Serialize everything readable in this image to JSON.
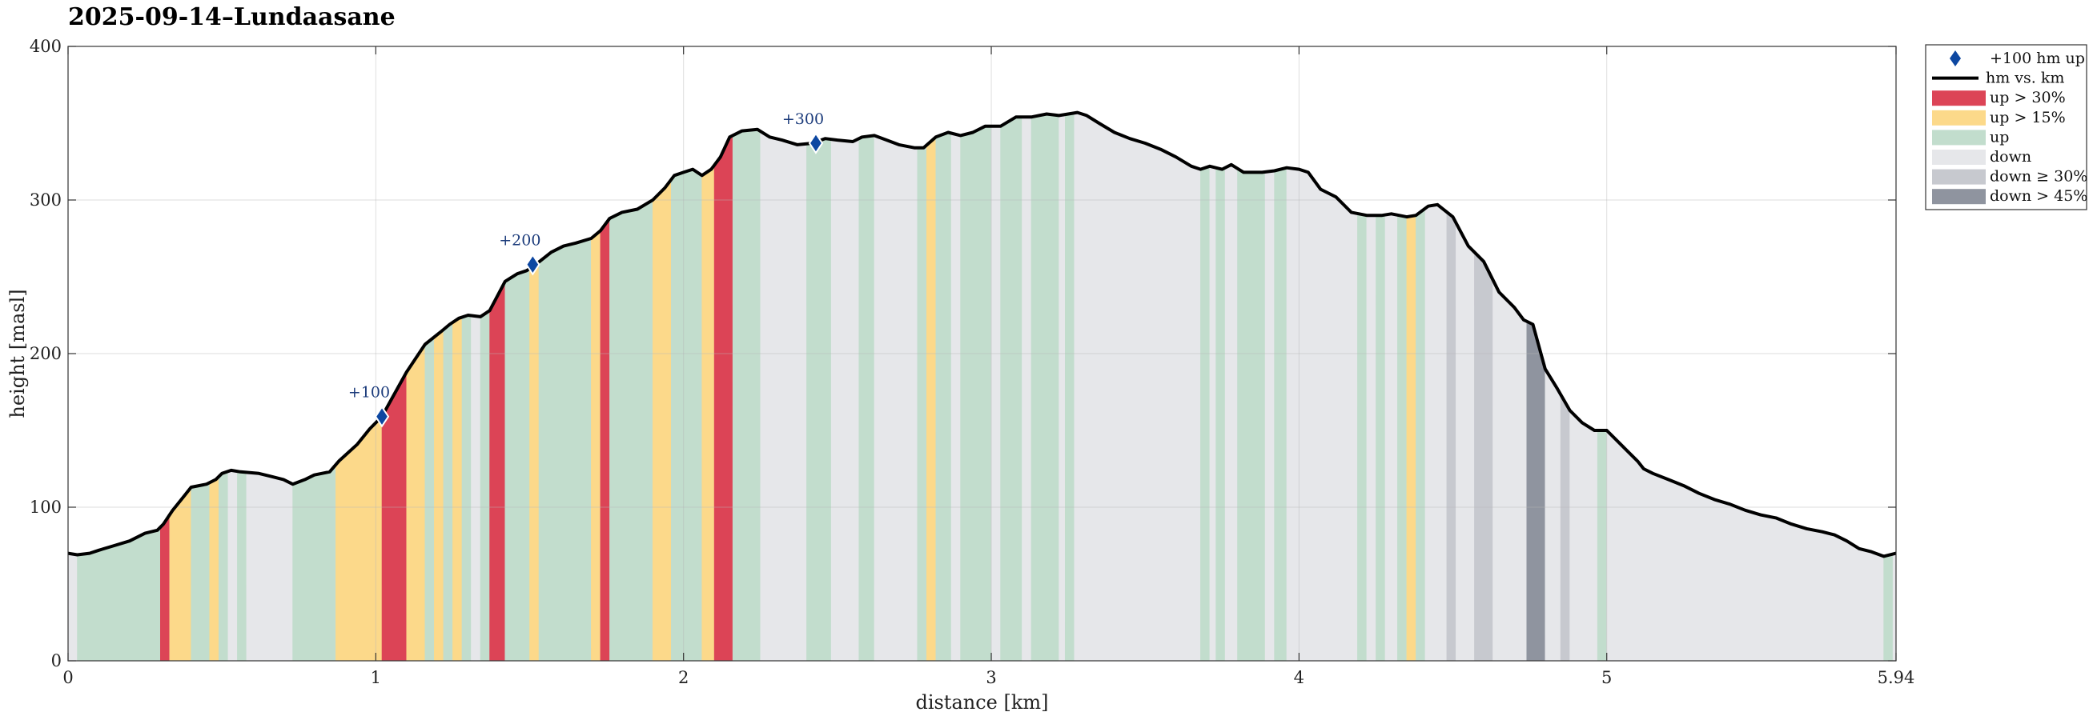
{
  "chart_data": {
    "type": "area",
    "title": "2025-09-14–Lundaasane",
    "xlabel": "distance [km]",
    "ylabel": "height [masl]",
    "xlim": [
      0,
      5.94
    ],
    "ylim": [
      0,
      400
    ],
    "xticks": [
      "0",
      "1",
      "2",
      "3",
      "4",
      "5",
      "5.94"
    ],
    "xtick_values": [
      0,
      1,
      2,
      3,
      4,
      5,
      5.94
    ],
    "yticks": [
      "0",
      "100",
      "200",
      "300",
      "400"
    ],
    "ytick_values": [
      0,
      100,
      200,
      300,
      400
    ],
    "grid": true,
    "legend_placement": "outside-top-right",
    "legend": [
      {
        "label": "+100 hm up",
        "kind": "marker",
        "color": "#0d47a1"
      },
      {
        "label": "hm vs. km",
        "kind": "line",
        "color": "#000000"
      },
      {
        "label": "up > 30%",
        "kind": "patch",
        "color": "#dc4456"
      },
      {
        "label": "up > 15%",
        "kind": "patch",
        "color": "#fcd98a"
      },
      {
        "label": "up",
        "kind": "patch",
        "color": "#c2ddcd"
      },
      {
        "label": "down",
        "kind": "patch",
        "color": "#e6e7ea"
      },
      {
        "label": "down ≥ 30%",
        "kind": "patch",
        "color": "#c7c9cf"
      },
      {
        "label": "down > 45%",
        "kind": "patch",
        "color": "#8f949f"
      }
    ],
    "colors": {
      "up30": "#dc4456",
      "up15": "#fcd98a",
      "up": "#c2ddcd",
      "down": "#e6e7ea",
      "down30": "#c7c9cf",
      "down45": "#8f949f",
      "line": "#000000",
      "marker": "#0d47a1"
    },
    "profile": [
      [
        0.0,
        70
      ],
      [
        0.03,
        69
      ],
      [
        0.07,
        70
      ],
      [
        0.1,
        72
      ],
      [
        0.15,
        75
      ],
      [
        0.2,
        78
      ],
      [
        0.25,
        83
      ],
      [
        0.29,
        85
      ],
      [
        0.31,
        89
      ],
      [
        0.34,
        98
      ],
      [
        0.38,
        108
      ],
      [
        0.4,
        113
      ],
      [
        0.45,
        115
      ],
      [
        0.48,
        118
      ],
      [
        0.5,
        122
      ],
      [
        0.53,
        124
      ],
      [
        0.56,
        123
      ],
      [
        0.62,
        122
      ],
      [
        0.66,
        120
      ],
      [
        0.7,
        118
      ],
      [
        0.73,
        115
      ],
      [
        0.77,
        118
      ],
      [
        0.8,
        121
      ],
      [
        0.85,
        123
      ],
      [
        0.88,
        130
      ],
      [
        0.94,
        141
      ],
      [
        0.98,
        151
      ],
      [
        1.02,
        159
      ],
      [
        1.05,
        170
      ],
      [
        1.1,
        188
      ],
      [
        1.16,
        206
      ],
      [
        1.21,
        214
      ],
      [
        1.24,
        219
      ],
      [
        1.27,
        223
      ],
      [
        1.3,
        225
      ],
      [
        1.34,
        224
      ],
      [
        1.37,
        228
      ],
      [
        1.42,
        247
      ],
      [
        1.46,
        252
      ],
      [
        1.49,
        254
      ],
      [
        1.52,
        258
      ],
      [
        1.57,
        266
      ],
      [
        1.61,
        270
      ],
      [
        1.65,
        272
      ],
      [
        1.7,
        275
      ],
      [
        1.73,
        280
      ],
      [
        1.76,
        288
      ],
      [
        1.8,
        292
      ],
      [
        1.85,
        294
      ],
      [
        1.9,
        300
      ],
      [
        1.94,
        308
      ],
      [
        1.97,
        316
      ],
      [
        2.0,
        318
      ],
      [
        2.03,
        320
      ],
      [
        2.06,
        316
      ],
      [
        2.09,
        320
      ],
      [
        2.12,
        328
      ],
      [
        2.15,
        341
      ],
      [
        2.19,
        345
      ],
      [
        2.24,
        346
      ],
      [
        2.28,
        341
      ],
      [
        2.32,
        339
      ],
      [
        2.37,
        336
      ],
      [
        2.42,
        337
      ],
      [
        2.46,
        340
      ],
      [
        2.5,
        339
      ],
      [
        2.55,
        338
      ],
      [
        2.58,
        341
      ],
      [
        2.62,
        342
      ],
      [
        2.66,
        339
      ],
      [
        2.7,
        336
      ],
      [
        2.75,
        334
      ],
      [
        2.78,
        334
      ],
      [
        2.82,
        341
      ],
      [
        2.86,
        344
      ],
      [
        2.9,
        342
      ],
      [
        2.94,
        344
      ],
      [
        2.98,
        348
      ],
      [
        3.03,
        348
      ],
      [
        3.08,
        354
      ],
      [
        3.13,
        354
      ],
      [
        3.18,
        356
      ],
      [
        3.22,
        355
      ],
      [
        3.28,
        357
      ],
      [
        3.31,
        355
      ],
      [
        3.35,
        350
      ],
      [
        3.4,
        344
      ],
      [
        3.45,
        340
      ],
      [
        3.5,
        337
      ],
      [
        3.55,
        333
      ],
      [
        3.6,
        328
      ],
      [
        3.65,
        322
      ],
      [
        3.68,
        320
      ],
      [
        3.71,
        322
      ],
      [
        3.75,
        320
      ],
      [
        3.78,
        323
      ],
      [
        3.82,
        318
      ],
      [
        3.88,
        318
      ],
      [
        3.92,
        319
      ],
      [
        3.96,
        321
      ],
      [
        4.0,
        320
      ],
      [
        4.03,
        318
      ],
      [
        4.07,
        307
      ],
      [
        4.12,
        302
      ],
      [
        4.17,
        292
      ],
      [
        4.22,
        290
      ],
      [
        4.27,
        290
      ],
      [
        4.3,
        291
      ],
      [
        4.35,
        289
      ],
      [
        4.38,
        290
      ],
      [
        4.42,
        296
      ],
      [
        4.45,
        297
      ],
      [
        4.5,
        289
      ],
      [
        4.55,
        270
      ],
      [
        4.6,
        260
      ],
      [
        4.65,
        240
      ],
      [
        4.7,
        230
      ],
      [
        4.73,
        222
      ],
      [
        4.76,
        219
      ],
      [
        4.8,
        190
      ],
      [
        4.84,
        177
      ],
      [
        4.88,
        163
      ],
      [
        4.92,
        155
      ],
      [
        4.96,
        150
      ],
      [
        5.0,
        150
      ],
      [
        5.05,
        140
      ],
      [
        5.1,
        130
      ],
      [
        5.12,
        125
      ],
      [
        5.15,
        122
      ],
      [
        5.2,
        118
      ],
      [
        5.25,
        114
      ],
      [
        5.3,
        109
      ],
      [
        5.35,
        105
      ],
      [
        5.4,
        102
      ],
      [
        5.45,
        98
      ],
      [
        5.5,
        95
      ],
      [
        5.55,
        93
      ],
      [
        5.6,
        89
      ],
      [
        5.65,
        86
      ],
      [
        5.7,
        84
      ],
      [
        5.74,
        82
      ],
      [
        5.78,
        78
      ],
      [
        5.82,
        73
      ],
      [
        5.86,
        71
      ],
      [
        5.9,
        68
      ],
      [
        5.94,
        70
      ]
    ],
    "segments": [
      {
        "x0": 0.0,
        "x1": 0.03,
        "cat": "down"
      },
      {
        "x0": 0.03,
        "x1": 0.3,
        "cat": "up"
      },
      {
        "x0": 0.3,
        "x1": 0.33,
        "cat": "up30"
      },
      {
        "x0": 0.33,
        "x1": 0.4,
        "cat": "up15"
      },
      {
        "x0": 0.4,
        "x1": 0.46,
        "cat": "up"
      },
      {
        "x0": 0.46,
        "x1": 0.49,
        "cat": "up15"
      },
      {
        "x0": 0.49,
        "x1": 0.52,
        "cat": "up"
      },
      {
        "x0": 0.52,
        "x1": 0.55,
        "cat": "down"
      },
      {
        "x0": 0.55,
        "x1": 0.58,
        "cat": "up"
      },
      {
        "x0": 0.58,
        "x1": 0.73,
        "cat": "down"
      },
      {
        "x0": 0.73,
        "x1": 0.87,
        "cat": "up"
      },
      {
        "x0": 0.87,
        "x1": 1.02,
        "cat": "up15"
      },
      {
        "x0": 1.02,
        "x1": 1.1,
        "cat": "up30"
      },
      {
        "x0": 1.1,
        "x1": 1.16,
        "cat": "up15"
      },
      {
        "x0": 1.16,
        "x1": 1.19,
        "cat": "up"
      },
      {
        "x0": 1.19,
        "x1": 1.22,
        "cat": "up15"
      },
      {
        "x0": 1.22,
        "x1": 1.25,
        "cat": "up"
      },
      {
        "x0": 1.25,
        "x1": 1.28,
        "cat": "up15"
      },
      {
        "x0": 1.28,
        "x1": 1.31,
        "cat": "up"
      },
      {
        "x0": 1.31,
        "x1": 1.34,
        "cat": "down"
      },
      {
        "x0": 1.34,
        "x1": 1.37,
        "cat": "up"
      },
      {
        "x0": 1.37,
        "x1": 1.42,
        "cat": "up30"
      },
      {
        "x0": 1.42,
        "x1": 1.5,
        "cat": "up"
      },
      {
        "x0": 1.5,
        "x1": 1.53,
        "cat": "up15"
      },
      {
        "x0": 1.53,
        "x1": 1.7,
        "cat": "up"
      },
      {
        "x0": 1.7,
        "x1": 1.73,
        "cat": "up15"
      },
      {
        "x0": 1.73,
        "x1": 1.76,
        "cat": "up30"
      },
      {
        "x0": 1.76,
        "x1": 1.9,
        "cat": "up"
      },
      {
        "x0": 1.9,
        "x1": 1.96,
        "cat": "up15"
      },
      {
        "x0": 1.96,
        "x1": 2.06,
        "cat": "up"
      },
      {
        "x0": 2.06,
        "x1": 2.1,
        "cat": "up15"
      },
      {
        "x0": 2.1,
        "x1": 2.16,
        "cat": "up30"
      },
      {
        "x0": 2.16,
        "x1": 2.25,
        "cat": "up"
      },
      {
        "x0": 2.25,
        "x1": 2.4,
        "cat": "down"
      },
      {
        "x0": 2.4,
        "x1": 2.48,
        "cat": "up"
      },
      {
        "x0": 2.48,
        "x1": 2.57,
        "cat": "down"
      },
      {
        "x0": 2.57,
        "x1": 2.62,
        "cat": "up"
      },
      {
        "x0": 2.62,
        "x1": 2.76,
        "cat": "down"
      },
      {
        "x0": 2.76,
        "x1": 2.79,
        "cat": "up"
      },
      {
        "x0": 2.79,
        "x1": 2.82,
        "cat": "up15"
      },
      {
        "x0": 2.82,
        "x1": 2.87,
        "cat": "up"
      },
      {
        "x0": 2.87,
        "x1": 2.9,
        "cat": "down"
      },
      {
        "x0": 2.9,
        "x1": 3.0,
        "cat": "up"
      },
      {
        "x0": 3.0,
        "x1": 3.03,
        "cat": "down"
      },
      {
        "x0": 3.03,
        "x1": 3.1,
        "cat": "up"
      },
      {
        "x0": 3.1,
        "x1": 3.13,
        "cat": "down"
      },
      {
        "x0": 3.13,
        "x1": 3.22,
        "cat": "up"
      },
      {
        "x0": 3.22,
        "x1": 3.24,
        "cat": "down"
      },
      {
        "x0": 3.24,
        "x1": 3.27,
        "cat": "up"
      },
      {
        "x0": 3.27,
        "x1": 3.68,
        "cat": "down"
      },
      {
        "x0": 3.68,
        "x1": 3.71,
        "cat": "up"
      },
      {
        "x0": 3.71,
        "x1": 3.73,
        "cat": "down"
      },
      {
        "x0": 3.73,
        "x1": 3.76,
        "cat": "up"
      },
      {
        "x0": 3.76,
        "x1": 3.8,
        "cat": "down"
      },
      {
        "x0": 3.8,
        "x1": 3.89,
        "cat": "up"
      },
      {
        "x0": 3.89,
        "x1": 3.92,
        "cat": "down"
      },
      {
        "x0": 3.92,
        "x1": 3.96,
        "cat": "up"
      },
      {
        "x0": 3.96,
        "x1": 4.19,
        "cat": "down"
      },
      {
        "x0": 4.19,
        "x1": 4.22,
        "cat": "up"
      },
      {
        "x0": 4.22,
        "x1": 4.25,
        "cat": "down"
      },
      {
        "x0": 4.25,
        "x1": 4.28,
        "cat": "up"
      },
      {
        "x0": 4.28,
        "x1": 4.32,
        "cat": "down"
      },
      {
        "x0": 4.32,
        "x1": 4.35,
        "cat": "up"
      },
      {
        "x0": 4.35,
        "x1": 4.38,
        "cat": "up15"
      },
      {
        "x0": 4.38,
        "x1": 4.41,
        "cat": "up"
      },
      {
        "x0": 4.41,
        "x1": 4.48,
        "cat": "down"
      },
      {
        "x0": 4.48,
        "x1": 4.51,
        "cat": "down30"
      },
      {
        "x0": 4.51,
        "x1": 4.57,
        "cat": "down"
      },
      {
        "x0": 4.57,
        "x1": 4.63,
        "cat": "down30"
      },
      {
        "x0": 4.63,
        "x1": 4.74,
        "cat": "down"
      },
      {
        "x0": 4.74,
        "x1": 4.8,
        "cat": "down45"
      },
      {
        "x0": 4.8,
        "x1": 4.85,
        "cat": "down"
      },
      {
        "x0": 4.85,
        "x1": 4.88,
        "cat": "down30"
      },
      {
        "x0": 4.88,
        "x1": 4.97,
        "cat": "down"
      },
      {
        "x0": 4.97,
        "x1": 5.0,
        "cat": "up"
      },
      {
        "x0": 5.0,
        "x1": 5.9,
        "cat": "down"
      },
      {
        "x0": 5.9,
        "x1": 5.93,
        "cat": "up"
      },
      {
        "x0": 5.93,
        "x1": 5.94,
        "cat": "down"
      }
    ],
    "markers": [
      {
        "x": 1.02,
        "y": 159,
        "label": "+100"
      },
      {
        "x": 1.51,
        "y": 258,
        "label": "+200"
      },
      {
        "x": 2.43,
        "y": 337,
        "label": "+300"
      }
    ]
  }
}
